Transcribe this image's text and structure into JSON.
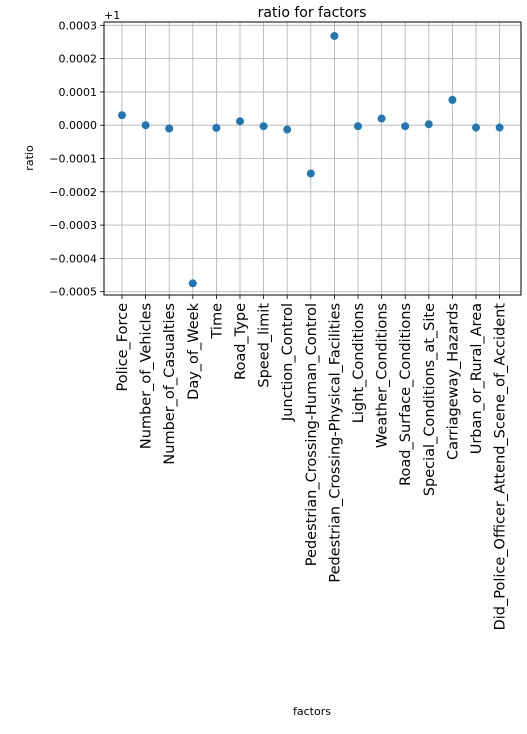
{
  "chart_data": {
    "type": "scatter",
    "title": "ratio for factors",
    "xlabel": "factors",
    "ylabel": "ratio",
    "offset_label": "+1",
    "ylim": [
      -0.00051,
      0.00031
    ],
    "yticks": [
      0.0003,
      0.0002,
      0.0001,
      0.0,
      -0.0001,
      -0.0002,
      -0.0003,
      -0.0004,
      -0.0005
    ],
    "ytick_labels": [
      "0.0003",
      "0.0002",
      "0.0001",
      "0.0000",
      "−0.0001",
      "−0.0002",
      "−0.0003",
      "−0.0004",
      "−0.0005"
    ],
    "grid": true,
    "marker_color": "#1f77b4",
    "categories": [
      "Police_Force",
      "Number_of_Vehicles",
      "Number_of_Casualties",
      "Day_of_Week",
      "Time",
      "Road_Type",
      "Speed_limit",
      "Junction_Control",
      "Pedestrian_Crossing-Human_Control",
      "Pedestrian_Crossing-Physical_Facilities",
      "Light_Conditions",
      "Weather_Conditions",
      "Road_Surface_Conditions",
      "Special_Conditions_at_Site",
      "Carriageway_Hazards",
      "Urban_or_Rural_Area",
      "Did_Police_Officer_Attend_Scene_of_Accident"
    ],
    "values": [
      3e-05,
      0.0,
      -1e-05,
      -0.000475,
      -8e-06,
      1.2e-05,
      -3e-06,
      -1.3e-05,
      -0.000145,
      0.000268,
      -3e-06,
      2e-05,
      -3e-06,
      3e-06,
      7.6e-05,
      -7e-06,
      -7e-06
    ]
  }
}
